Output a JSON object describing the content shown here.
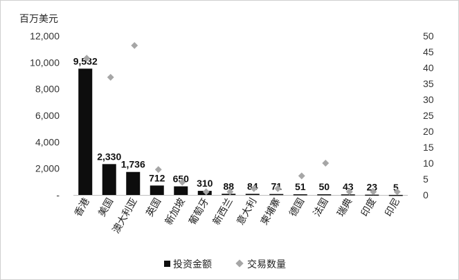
{
  "chart_data": {
    "type": "bar",
    "ylabel_unit": "百万美元",
    "categories": [
      "香港",
      "美国",
      "澳大利亚",
      "英国",
      "新加坡",
      "葡萄牙",
      "新西兰",
      "意大利",
      "柬埔寨",
      "德国",
      "法国",
      "瑞典",
      "印度",
      "印尼"
    ],
    "series": [
      {
        "name": "投资金额",
        "type": "bar",
        "axis": "left",
        "values": [
          9532,
          2330,
          1736,
          712,
          650,
          310,
          88,
          84,
          71,
          51,
          50,
          43,
          23,
          5
        ],
        "labels": [
          "9,532",
          "2,330",
          "1,736",
          "712",
          "650",
          "310",
          "88",
          "84",
          "71",
          "51",
          "50",
          "43",
          "23",
          "5"
        ],
        "color": "#0d0d0d"
      },
      {
        "name": "交易数量",
        "type": "scatter",
        "axis": "right",
        "values": [
          43,
          37,
          47,
          8,
          4,
          1,
          1,
          2,
          2,
          6,
          10,
          1,
          1,
          1
        ],
        "color": "#a6a6a6"
      }
    ],
    "left_axis": {
      "ylim": [
        0,
        12000
      ],
      "ticks": [
        0,
        2000,
        4000,
        6000,
        8000,
        10000,
        12000
      ],
      "tick_labels": [
        "-",
        "2,000",
        "4,000",
        "6,000",
        "8,000",
        "10,000",
        "12,000"
      ]
    },
    "right_axis": {
      "ylim": [
        0,
        50
      ],
      "ticks": [
        0,
        5,
        10,
        15,
        20,
        25,
        30,
        35,
        40,
        45,
        50
      ],
      "tick_labels": [
        "0",
        "5",
        "10",
        "15",
        "20",
        "25",
        "30",
        "35",
        "40",
        "45",
        "50"
      ]
    },
    "legend_position": "bottom",
    "grid": false
  }
}
